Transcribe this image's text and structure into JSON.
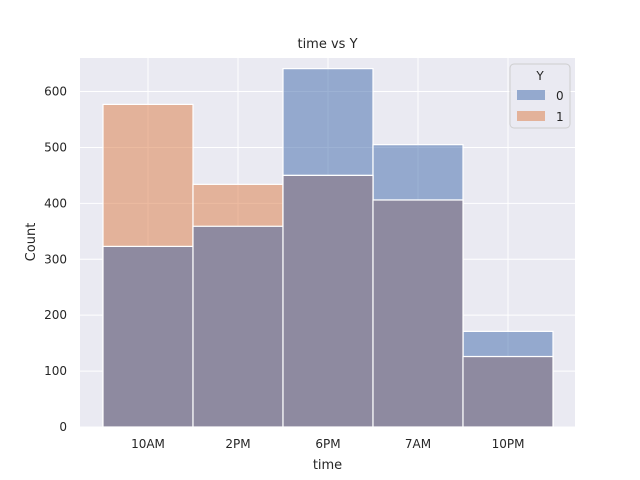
{
  "chart_data": {
    "type": "bar",
    "title": "time vs Y",
    "xlabel": "time",
    "ylabel": "Count",
    "categories": [
      "10AM",
      "2PM",
      "6PM",
      "7AM",
      "10PM"
    ],
    "series": [
      {
        "name": "0",
        "values": [
          323,
          359,
          641,
          505,
          171
        ],
        "color": "#4C72B0"
      },
      {
        "name": "1",
        "values": [
          577,
          434,
          450,
          406,
          126
        ],
        "color": "#DD8452"
      }
    ],
    "ylim": [
      0,
      660
    ],
    "yticks": [
      0,
      100,
      200,
      300,
      400,
      500,
      600
    ],
    "grid": true,
    "legend": {
      "title": "Y",
      "placement": "top-right"
    },
    "colors": {
      "background": "#EAEAF2",
      "grid": "#FFFFFF",
      "overlap": "#8E8AA0"
    }
  }
}
